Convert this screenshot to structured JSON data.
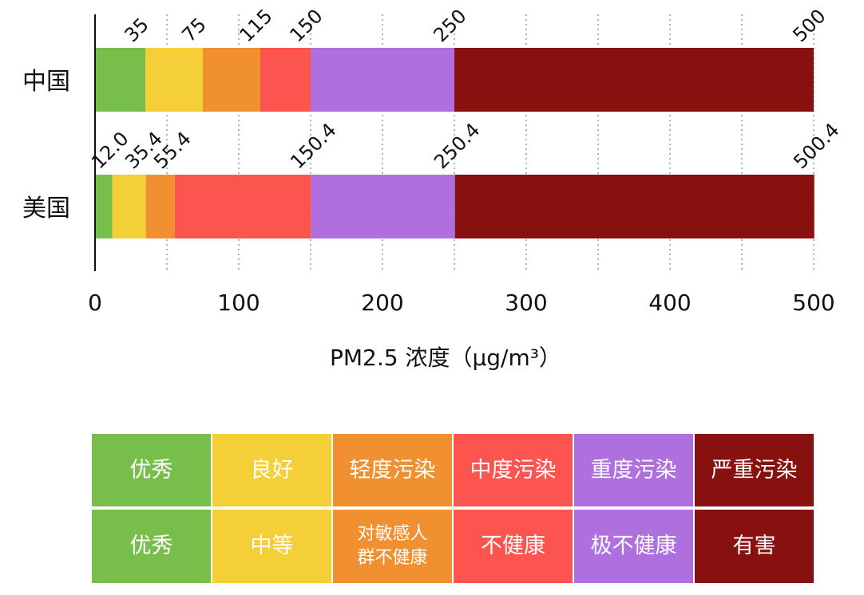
{
  "chart_data": {
    "type": "bar",
    "orientation": "horizontal",
    "stacked": true,
    "xlabel": "PM2.5 浓度（μg/m³）",
    "xlim": [
      0,
      500
    ],
    "xticks": [
      0,
      100,
      200,
      300,
      400,
      500
    ],
    "grid": "vertical dotted every 50",
    "categories": [
      "中国",
      "美国"
    ],
    "colors": [
      "#78BE4A",
      "#F4CF37",
      "#F09030",
      "#FC5550",
      "#B06FDE",
      "#87110F"
    ],
    "breakpoints": [
      {
        "category": "中国",
        "values": [
          35,
          75,
          115,
          150,
          250,
          500
        ],
        "labels": [
          "35",
          "75",
          "115",
          "150",
          "250",
          "500"
        ]
      },
      {
        "category": "美国",
        "values": [
          12.0,
          35.4,
          55.4,
          150.4,
          250.4,
          500.4
        ],
        "labels": [
          "12.0",
          "35.4",
          "55.4",
          "150.4",
          "250.4",
          "500.4"
        ]
      }
    ]
  },
  "legend": {
    "china": [
      "优秀",
      "良好",
      "轻度污染",
      "中度污染",
      "重度污染",
      "严重污染"
    ],
    "usa": [
      "优秀",
      "中等",
      "对敏感人群不健康",
      "不健康",
      "极不健康",
      "有害"
    ]
  }
}
